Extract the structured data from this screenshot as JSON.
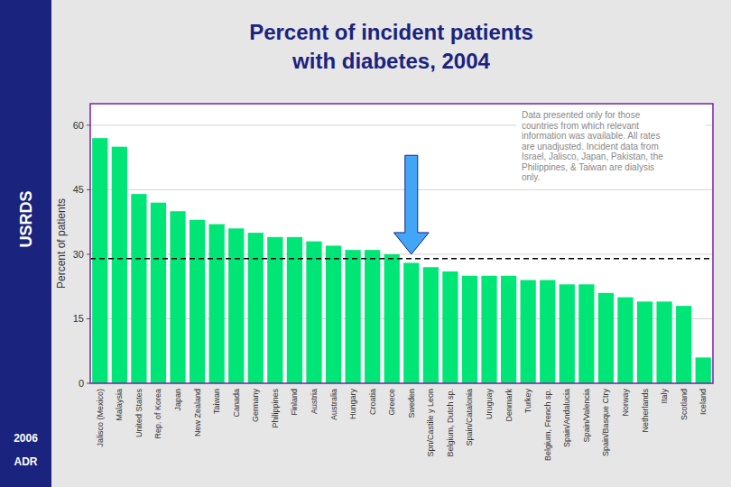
{
  "chart_data": {
    "type": "bar",
    "title": "Percent of incident patients",
    "subtitle": "with diabetes, 2004",
    "source": "USRDS",
    "notes": [
      "2006",
      "ADR"
    ],
    "annotation": "Data presented only for those\ncountries from which relevant\ninformation was available. All rates\nare unadjusted. Incident data from\nIsrael, Jalisco, Japan, Pakistan, the\nPhilippines, & Taiwan are dialysis\nonly.",
    "ylabel": "Percent of patients",
    "categories": [
      "Jalisco (Mexico)",
      "Malaysia",
      "United States",
      "Rep. of Korea",
      "Japan",
      "New Zealand",
      "Taiwan",
      "Canada",
      "Germany",
      "Philippines",
      "Finland",
      "Austria",
      "Australia",
      "Hungary",
      "Croatia",
      "Greece",
      "Sweden",
      "Spn/Castile y Leon",
      "Belgium, Dutch sp.",
      "Spain/Catalonia",
      "Uruguay",
      "Denmark",
      "Turkey",
      "Belgium, French sp.",
      "Spain/Andalucia",
      "Spain/Valencia",
      "Spain/Basque Ctry",
      "Norway",
      "Netherlands",
      "Italy",
      "Scotland",
      "Iceland"
    ],
    "values": [
      57,
      55,
      44,
      42,
      40,
      38,
      37,
      36,
      35,
      34,
      34,
      33,
      32,
      31,
      31,
      30,
      28,
      27,
      26,
      25,
      25,
      25,
      24,
      24,
      23,
      23,
      21,
      20,
      19,
      19,
      18,
      6
    ],
    "color": "#00e676",
    "ylim": [
      0,
      65
    ],
    "yticks": [
      0,
      15,
      30,
      45,
      60
    ],
    "grid": true,
    "reference_line": 29,
    "arrow": {
      "category": "Sweden",
      "from": 53,
      "to": 30,
      "color": "#42a5f5"
    }
  }
}
